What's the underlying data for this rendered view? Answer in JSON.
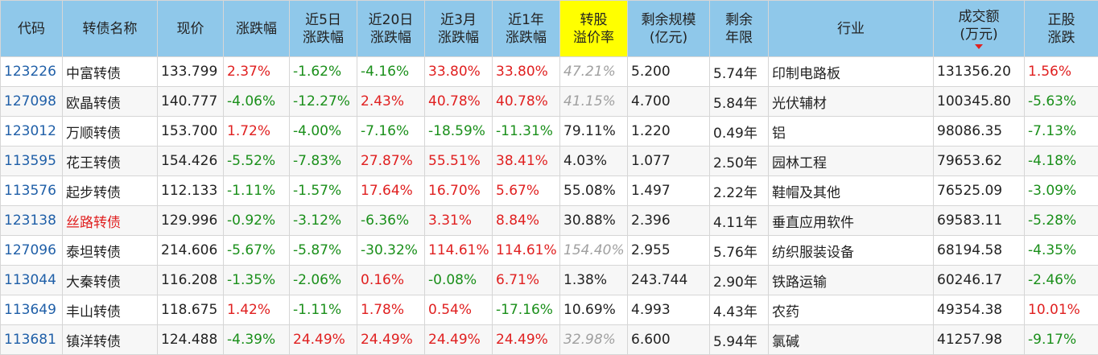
{
  "columns": [
    {
      "key": "code",
      "lines": [
        "代码"
      ]
    },
    {
      "key": "name",
      "lines": [
        "转债名称"
      ]
    },
    {
      "key": "price",
      "lines": [
        "现价"
      ]
    },
    {
      "key": "chg",
      "lines": [
        "涨跌幅"
      ]
    },
    {
      "key": "chg5",
      "lines": [
        "近5日",
        "涨跌幅"
      ]
    },
    {
      "key": "chg20",
      "lines": [
        "近20日",
        "涨跌幅"
      ]
    },
    {
      "key": "chg3m",
      "lines": [
        "近3月",
        "涨跌幅"
      ]
    },
    {
      "key": "chg1y",
      "lines": [
        "近1年",
        "涨跌幅"
      ]
    },
    {
      "key": "premium",
      "lines": [
        "转股",
        "溢价率"
      ],
      "highlight": true
    },
    {
      "key": "scale",
      "lines": [
        "剩余规模",
        "(亿元)"
      ]
    },
    {
      "key": "years",
      "lines": [
        "剩余",
        "年限"
      ]
    },
    {
      "key": "industry",
      "lines": [
        "行业"
      ]
    },
    {
      "key": "volume",
      "lines": [
        "成交额",
        "(万元)"
      ],
      "sorted": true
    },
    {
      "key": "stock_chg",
      "lines": [
        "正股",
        "涨跌"
      ]
    }
  ],
  "colors": {
    "header_bg": "#8fc8ea",
    "highlight_bg": "#ffff00",
    "up": "#e02020",
    "down": "#1a8f1a",
    "code": "#1f5fa8",
    "dim": "#a0a0a0"
  },
  "rows": [
    {
      "code": "123226",
      "name": "中富转债",
      "price": "133.799",
      "chg": "2.37%",
      "chg5": "-1.62%",
      "chg20": "-4.16%",
      "chg3m": "33.80%",
      "chg1y": "33.80%",
      "premium": "47.21%",
      "premium_dim": true,
      "scale": "5.200",
      "years": "5.74年",
      "industry": "印制电路板",
      "volume": "131356.20",
      "stock_chg": "1.56%"
    },
    {
      "code": "127098",
      "name": "欧晶转债",
      "price": "140.777",
      "chg": "-4.06%",
      "chg5": "-12.27%",
      "chg20": "2.43%",
      "chg3m": "40.78%",
      "chg1y": "40.78%",
      "premium": "41.15%",
      "premium_dim": true,
      "scale": "4.700",
      "years": "5.84年",
      "industry": "光伏辅材",
      "volume": "100345.80",
      "stock_chg": "-5.63%"
    },
    {
      "code": "123012",
      "name": "万顺转债",
      "price": "153.700",
      "chg": "1.72%",
      "chg5": "-4.00%",
      "chg20": "-7.16%",
      "chg3m": "-18.59%",
      "chg1y": "-11.31%",
      "premium": "79.11%",
      "premium_dim": false,
      "scale": "1.220",
      "years": "0.49年",
      "industry": "铝",
      "volume": "98086.35",
      "stock_chg": "-7.13%"
    },
    {
      "code": "113595",
      "name": "花王转债",
      "price": "154.426",
      "chg": "-5.52%",
      "chg5": "-7.83%",
      "chg20": "27.87%",
      "chg3m": "55.51%",
      "chg1y": "38.41%",
      "premium": "4.03%",
      "premium_dim": false,
      "scale": "1.077",
      "years": "2.50年",
      "industry": "园林工程",
      "volume": "79653.62",
      "stock_chg": "-4.18%"
    },
    {
      "code": "113576",
      "name": "起步转债",
      "price": "112.133",
      "chg": "-1.11%",
      "chg5": "-1.57%",
      "chg20": "17.64%",
      "chg3m": "16.70%",
      "chg1y": "5.67%",
      "premium": "55.08%",
      "premium_dim": false,
      "scale": "1.497",
      "years": "2.22年",
      "industry": "鞋帽及其他",
      "volume": "76525.09",
      "stock_chg": "-3.09%"
    },
    {
      "code": "123138",
      "name": "丝路转债",
      "name_red": true,
      "price": "129.996",
      "chg": "-0.92%",
      "chg5": "-3.12%",
      "chg20": "-6.36%",
      "chg3m": "3.31%",
      "chg1y": "8.84%",
      "premium": "30.88%",
      "premium_dim": false,
      "scale": "2.396",
      "years": "4.11年",
      "industry": "垂直应用软件",
      "volume": "69583.11",
      "stock_chg": "-5.28%"
    },
    {
      "code": "127096",
      "name": "泰坦转债",
      "price": "214.606",
      "chg": "-5.67%",
      "chg5": "-5.87%",
      "chg20": "-30.32%",
      "chg3m": "114.61%",
      "chg1y": "114.61%",
      "premium": "154.40%",
      "premium_dim": true,
      "scale": "2.955",
      "years": "5.76年",
      "industry": "纺织服装设备",
      "volume": "68194.58",
      "stock_chg": "-4.35%"
    },
    {
      "code": "113044",
      "name": "大秦转债",
      "price": "116.208",
      "chg": "-1.35%",
      "chg5": "-2.06%",
      "chg20": "0.16%",
      "chg3m": "-0.08%",
      "chg1y": "6.71%",
      "premium": "1.38%",
      "premium_dim": false,
      "scale": "243.744",
      "years": "2.90年",
      "industry": "铁路运输",
      "volume": "60246.17",
      "stock_chg": "-2.46%"
    },
    {
      "code": "113649",
      "name": "丰山转债",
      "price": "118.675",
      "chg": "1.42%",
      "chg5": "-1.11%",
      "chg20": "1.78%",
      "chg3m": "0.54%",
      "chg1y": "-17.16%",
      "premium": "10.69%",
      "premium_dim": false,
      "scale": "4.993",
      "years": "4.43年",
      "industry": "农药",
      "volume": "49354.38",
      "stock_chg": "10.01%"
    },
    {
      "code": "113681",
      "name": "镇洋转债",
      "price": "124.488",
      "chg": "-4.39%",
      "chg5": "24.49%",
      "chg20": "24.49%",
      "chg3m": "24.49%",
      "chg1y": "24.49%",
      "premium": "32.98%",
      "premium_dim": true,
      "scale": "6.600",
      "years": "5.94年",
      "industry": "氯碱",
      "volume": "41257.98",
      "stock_chg": "-9.17%"
    }
  ]
}
